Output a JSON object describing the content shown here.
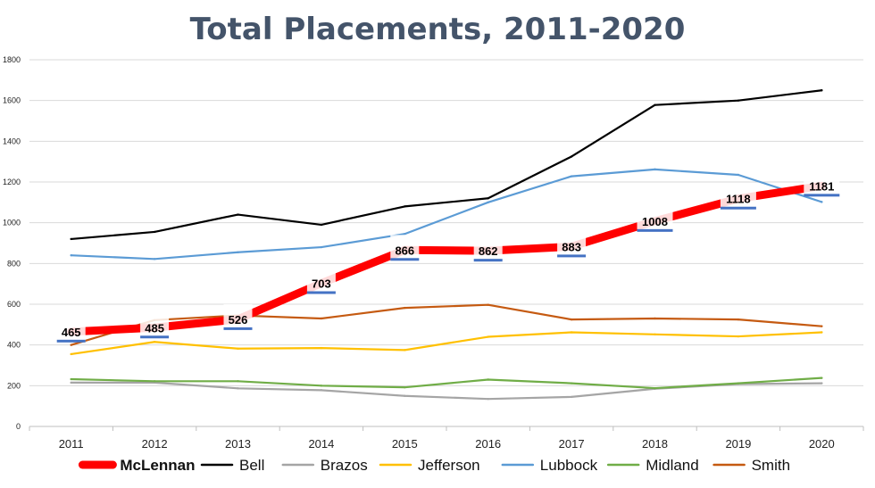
{
  "chart_data": {
    "type": "line",
    "title": "Total Placements, 2011-2020",
    "x": [
      "2011",
      "2012",
      "2013",
      "2014",
      "2015",
      "2016",
      "2017",
      "2018",
      "2019",
      "2020"
    ],
    "ylim": [
      0,
      1800
    ],
    "yticks": [
      0,
      200,
      400,
      600,
      800,
      1000,
      1200,
      1400,
      1600,
      1800
    ],
    "grid": true,
    "legend_position": "bottom",
    "series": [
      {
        "name": "McLennan",
        "color": "#ff0000",
        "emphasized": true,
        "show_labels": true,
        "values": [
          465,
          485,
          526,
          703,
          866,
          862,
          883,
          1008,
          1118,
          1181
        ]
      },
      {
        "name": "Bell",
        "color": "#000000",
        "values": [
          920,
          955,
          1040,
          990,
          1080,
          1120,
          1325,
          1578,
          1600,
          1650
        ]
      },
      {
        "name": "Brazos",
        "color": "#a5a5a5",
        "values": [
          215,
          215,
          187,
          178,
          150,
          135,
          145,
          185,
          208,
          212
        ]
      },
      {
        "name": "Jefferson",
        "color": "#ffc000",
        "values": [
          355,
          415,
          382,
          385,
          375,
          440,
          462,
          452,
          442,
          462
        ]
      },
      {
        "name": "Lubbock",
        "color": "#5b9bd5",
        "values": [
          840,
          822,
          855,
          880,
          945,
          1100,
          1228,
          1262,
          1235,
          1102
        ]
      },
      {
        "name": "Midland",
        "color": "#70ad47",
        "values": [
          232,
          222,
          222,
          200,
          192,
          230,
          212,
          188,
          212,
          238
        ]
      },
      {
        "name": "Smith",
        "color": "#c55a11",
        "values": [
          400,
          522,
          545,
          530,
          582,
          597,
          525,
          530,
          525,
          492
        ]
      }
    ]
  }
}
